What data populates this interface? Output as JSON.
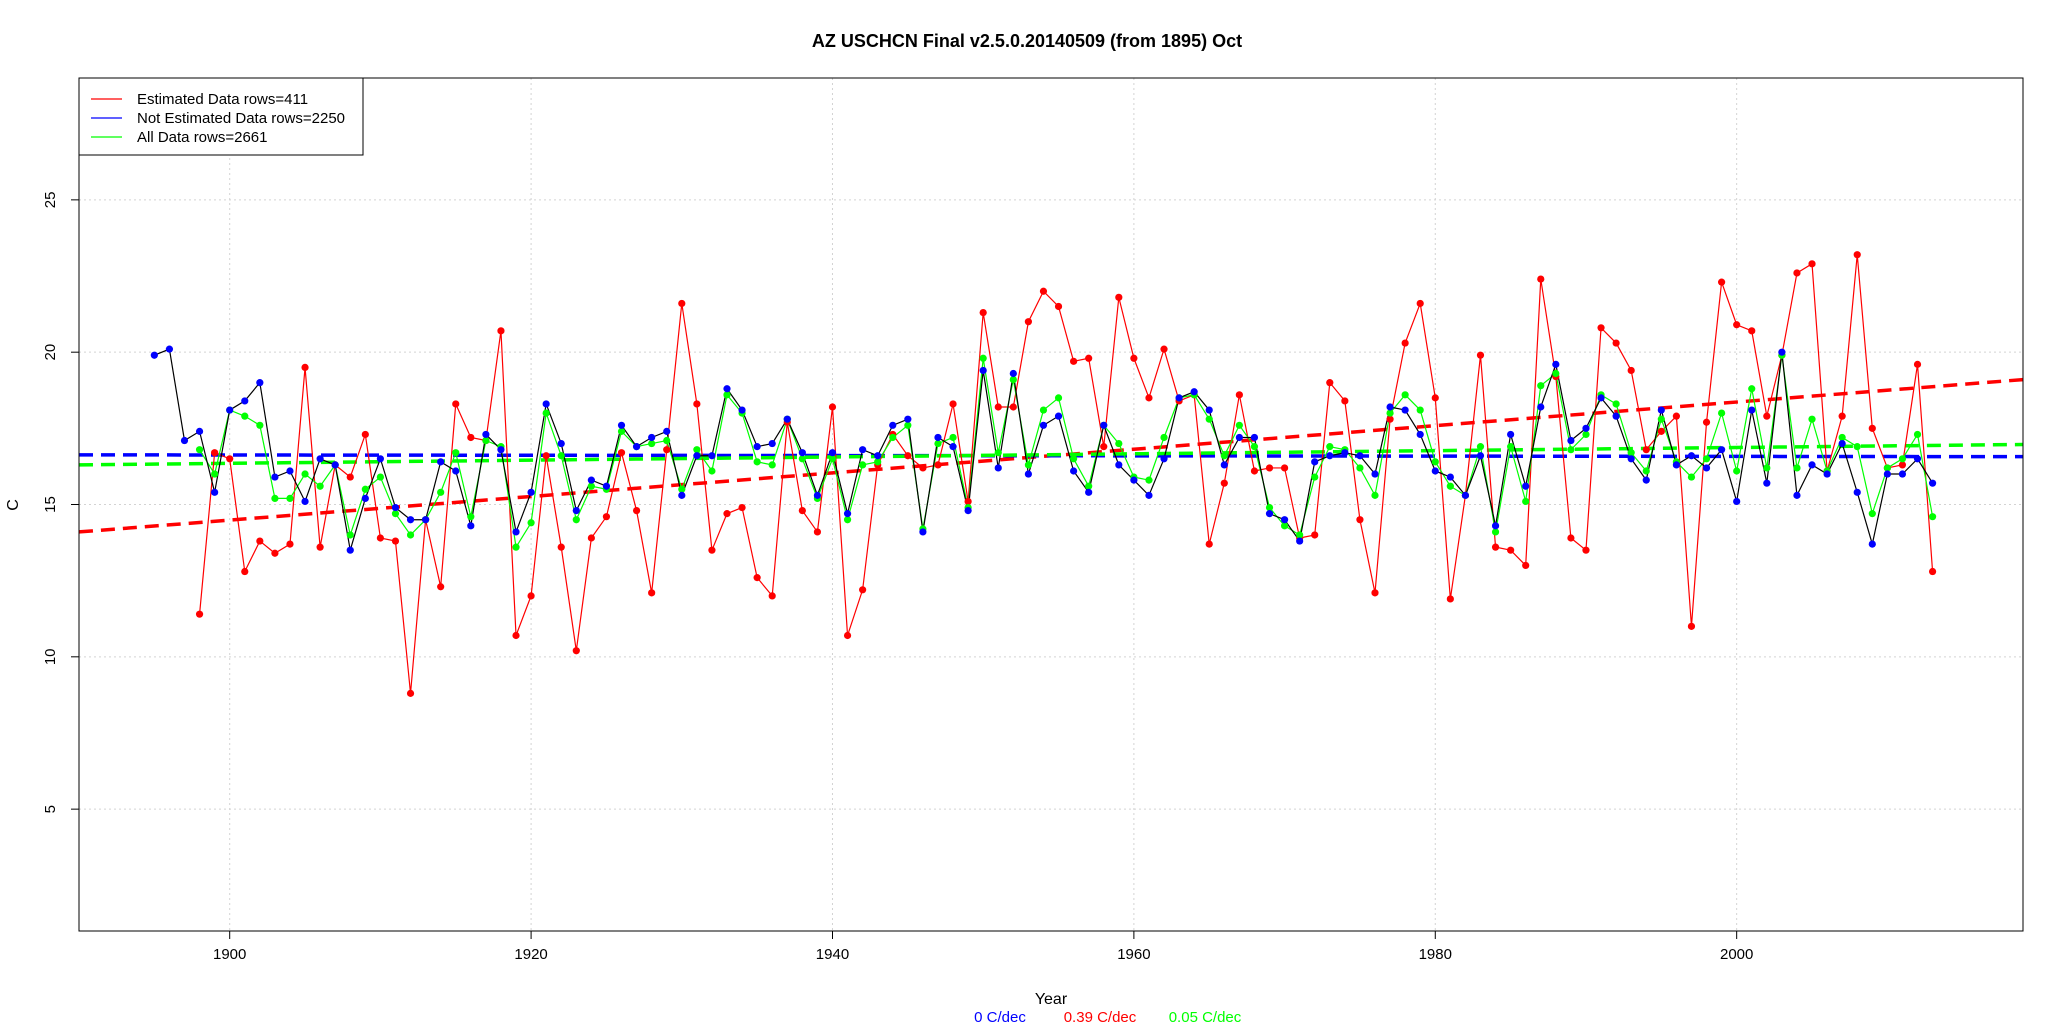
{
  "chart_data": {
    "type": "line",
    "title": "AZ USCHCN Final v2.5.0.20140509 (from 1895) Oct",
    "xlabel": "Year",
    "ylabel": "C",
    "xlim": [
      1890,
      2019
    ],
    "ylim": [
      1,
      29
    ],
    "x_ticks": [
      "1900",
      "1920",
      "1940",
      "1960",
      "1980",
      "2000"
    ],
    "y_ticks": [
      "5",
      "10",
      "15",
      "20",
      "25"
    ],
    "grid": true,
    "legend_position": "top-left",
    "colors": {
      "estimated": "#ff0000",
      "not_estimated": "#0000ff",
      "all": "#00ff00",
      "connector": "#000000"
    },
    "series": [
      {
        "name": "Estimated Data rows=411",
        "color": "#ff0000",
        "x": [
          1898,
          1899,
          1900,
          1901,
          1902,
          1903,
          1904,
          1905,
          1906,
          1907,
          1908,
          1909,
          1910,
          1911,
          1912,
          1913,
          1914,
          1915,
          1916,
          1917,
          1918,
          1919,
          1920,
          1921,
          1922,
          1923,
          1924,
          1925,
          1926,
          1927,
          1928,
          1929,
          1930,
          1931,
          1932,
          1933,
          1934,
          1935,
          1936,
          1937,
          1938,
          1939,
          1940,
          1941,
          1942,
          1943,
          1944,
          1945,
          1946,
          1947,
          1948,
          1949,
          1950,
          1951,
          1952,
          1953,
          1954,
          1955,
          1956,
          1957,
          1958,
          1959,
          1960,
          1961,
          1962,
          1963,
          1964,
          1965,
          1966,
          1967,
          1968,
          1969,
          1970,
          1971,
          1972,
          1973,
          1974,
          1975,
          1976,
          1977,
          1978,
          1979,
          1980,
          1981,
          1982,
          1983,
          1984,
          1985,
          1986,
          1987,
          1988,
          1989,
          1990,
          1991,
          1992,
          1993,
          1994,
          1995,
          1996,
          1997,
          1998,
          1999,
          2000,
          2001,
          2002,
          2003,
          2004,
          2005,
          2006,
          2007,
          2008,
          2009,
          2010,
          2011,
          2012,
          2013
        ],
        "values": [
          11.4,
          16.7,
          16.5,
          12.8,
          13.8,
          13.4,
          13.7,
          19.5,
          13.6,
          16.3,
          15.9,
          17.3,
          13.9,
          13.8,
          8.8,
          14.5,
          12.3,
          18.3,
          17.2,
          17.1,
          20.7,
          10.7,
          12.0,
          16.6,
          13.6,
          10.2,
          13.9,
          14.6,
          16.7,
          14.8,
          12.1,
          16.8,
          21.6,
          18.3,
          13.5,
          14.7,
          14.9,
          12.6,
          12.0,
          17.7,
          14.8,
          14.1,
          18.2,
          10.7,
          12.2,
          16.3,
          17.3,
          16.6,
          16.2,
          16.3,
          18.3,
          15.1,
          21.3,
          18.2,
          18.2,
          21.0,
          22.0,
          21.5,
          19.7,
          19.8,
          16.9,
          21.8,
          19.8,
          18.5,
          20.1,
          18.4,
          18.6,
          13.7,
          15.7,
          18.6,
          16.1,
          16.2,
          16.2,
          13.9,
          14.0,
          19.0,
          18.4,
          14.5,
          12.1,
          17.8,
          20.3,
          21.6,
          18.5,
          11.9,
          15.3,
          19.9,
          13.6,
          13.5,
          13.0,
          22.4,
          19.2,
          13.9,
          13.5,
          20.8,
          20.3,
          19.4,
          16.8,
          17.4,
          17.9,
          11.0,
          17.7,
          22.3,
          20.9,
          20.7,
          17.9,
          19.9,
          22.6,
          22.9,
          16.1,
          17.9,
          23.2,
          17.5,
          16.2,
          16.3,
          19.6,
          12.8
        ]
      },
      {
        "name": "Not Estimated Data rows=2250",
        "color": "#0000ff",
        "x": [
          1895,
          1896,
          1897,
          1898,
          1899,
          1900,
          1901,
          1902,
          1903,
          1904,
          1905,
          1906,
          1907,
          1908,
          1909,
          1910,
          1911,
          1912,
          1913,
          1914,
          1915,
          1916,
          1917,
          1918,
          1919,
          1920,
          1921,
          1922,
          1923,
          1924,
          1925,
          1926,
          1927,
          1928,
          1929,
          1930,
          1931,
          1932,
          1933,
          1934,
          1935,
          1936,
          1937,
          1938,
          1939,
          1940,
          1941,
          1942,
          1943,
          1944,
          1945,
          1946,
          1947,
          1948,
          1949,
          1950,
          1951,
          1952,
          1953,
          1954,
          1955,
          1956,
          1957,
          1958,
          1959,
          1960,
          1961,
          1962,
          1963,
          1964,
          1965,
          1966,
          1967,
          1968,
          1969,
          1970,
          1971,
          1972,
          1973,
          1974,
          1975,
          1976,
          1977,
          1978,
          1979,
          1980,
          1981,
          1982,
          1983,
          1984,
          1985,
          1986,
          1987,
          1988,
          1989,
          1990,
          1991,
          1992,
          1993,
          1994,
          1995,
          1996,
          1997,
          1998,
          1999,
          2000,
          2001,
          2002,
          2003,
          2004,
          2005,
          2006,
          2007,
          2008,
          2009,
          2010,
          2011,
          2012,
          2013
        ],
        "values": [
          19.9,
          20.1,
          17.1,
          17.4,
          15.4,
          18.1,
          18.4,
          19.0,
          15.9,
          16.1,
          15.1,
          16.5,
          16.3,
          13.5,
          15.2,
          16.5,
          14.9,
          14.5,
          14.5,
          16.4,
          16.1,
          14.3,
          17.3,
          16.8,
          14.1,
          15.4,
          18.3,
          17.0,
          14.8,
          15.8,
          15.6,
          17.6,
          16.9,
          17.2,
          17.4,
          15.3,
          16.6,
          16.6,
          18.8,
          18.1,
          16.9,
          17.0,
          17.8,
          16.7,
          15.3,
          16.7,
          14.7,
          16.8,
          16.6,
          17.6,
          17.8,
          14.1,
          17.2,
          16.9,
          14.8,
          19.4,
          16.2,
          19.3,
          16.0,
          17.6,
          17.9,
          16.1,
          15.4,
          17.6,
          16.3,
          15.8,
          15.3,
          16.5,
          18.5,
          18.7,
          18.1,
          16.3,
          17.2,
          17.2,
          14.7,
          14.5,
          13.8,
          16.4,
          16.6,
          16.7,
          16.6,
          16.0,
          18.2,
          18.1,
          17.3,
          16.1,
          15.9,
          15.3,
          16.6,
          14.3,
          17.3,
          15.6,
          18.2,
          19.6,
          17.1,
          17.5,
          18.5,
          17.9,
          16.5,
          15.8,
          18.1,
          16.3,
          16.6,
          16.2,
          16.8,
          15.1,
          18.1,
          15.7,
          20.0,
          15.3,
          16.3,
          16.0,
          17.0,
          15.4,
          13.7,
          16.0,
          16.0,
          16.5,
          15.7
        ]
      },
      {
        "name": "All Data rows=2661",
        "color": "#00ff00",
        "x": [
          1898,
          1899,
          1900,
          1901,
          1902,
          1903,
          1904,
          1905,
          1906,
          1907,
          1908,
          1909,
          1910,
          1911,
          1912,
          1913,
          1914,
          1915,
          1916,
          1917,
          1918,
          1919,
          1920,
          1921,
          1922,
          1923,
          1924,
          1925,
          1926,
          1927,
          1928,
          1929,
          1930,
          1931,
          1932,
          1933,
          1934,
          1935,
          1936,
          1937,
          1938,
          1939,
          1940,
          1941,
          1942,
          1943,
          1944,
          1945,
          1946,
          1947,
          1948,
          1949,
          1950,
          1951,
          1952,
          1953,
          1954,
          1955,
          1956,
          1957,
          1958,
          1959,
          1960,
          1961,
          1962,
          1963,
          1964,
          1965,
          1966,
          1967,
          1968,
          1969,
          1970,
          1971,
          1972,
          1973,
          1974,
          1975,
          1976,
          1977,
          1978,
          1979,
          1980,
          1981,
          1982,
          1983,
          1984,
          1985,
          1986,
          1987,
          1988,
          1989,
          1990,
          1991,
          1992,
          1993,
          1994,
          1995,
          1996,
          1997,
          1998,
          1999,
          2000,
          2001,
          2002,
          2003,
          2004,
          2005,
          2006,
          2007,
          2008,
          2009,
          2010,
          2011,
          2012,
          2013
        ],
        "values": [
          16.8,
          16.0,
          18.1,
          17.9,
          17.6,
          15.2,
          15.2,
          16.0,
          15.6,
          16.3,
          14.0,
          15.5,
          15.9,
          14.7,
          14.0,
          14.5,
          15.4,
          16.7,
          14.6,
          17.1,
          16.9,
          13.6,
          14.4,
          18.0,
          16.6,
          14.5,
          15.6,
          15.5,
          17.4,
          16.9,
          17.0,
          17.1,
          15.5,
          16.8,
          16.1,
          18.6,
          18.0,
          16.4,
          16.3,
          17.8,
          16.5,
          15.2,
          16.5,
          14.5,
          16.3,
          16.4,
          17.2,
          17.6,
          14.2,
          17.0,
          17.2,
          14.9,
          19.8,
          16.7,
          19.1,
          16.3,
          18.1,
          18.5,
          16.5,
          15.6,
          17.6,
          17.0,
          15.9,
          15.8,
          17.2,
          18.5,
          18.6,
          17.8,
          16.6,
          17.6,
          16.9,
          14.9,
          14.3,
          14.0,
          15.9,
          16.9,
          16.8,
          16.2,
          15.3,
          18.0,
          18.6,
          18.1,
          16.4,
          15.6,
          15.3,
          16.9,
          14.1,
          16.9,
          15.1,
          18.9,
          19.3,
          16.8,
          17.3,
          18.6,
          18.3,
          16.7,
          16.1,
          17.8,
          16.4,
          15.9,
          16.5,
          18.0,
          16.1,
          18.8,
          16.2,
          19.9,
          16.2,
          17.8,
          16.1,
          17.2,
          16.9,
          14.7,
          16.2,
          16.5,
          17.3,
          14.6
        ]
      }
    ],
    "trend_lines": [
      {
        "series": "estimated",
        "color": "#ff0000",
        "x": [
          1890,
          2019
        ],
        "y": [
          14.1,
          19.1
        ],
        "label": "0.39 C/dec"
      },
      {
        "series": "not_estimated",
        "color": "#0000ff",
        "x": [
          1890,
          2019
        ],
        "y": [
          16.63,
          16.57
        ],
        "label": "0 C/dec"
      },
      {
        "series": "all",
        "color": "#00ff00",
        "x": [
          1890,
          2019
        ],
        "y": [
          16.3,
          16.97
        ],
        "label": "0.05 C/dec"
      }
    ]
  }
}
